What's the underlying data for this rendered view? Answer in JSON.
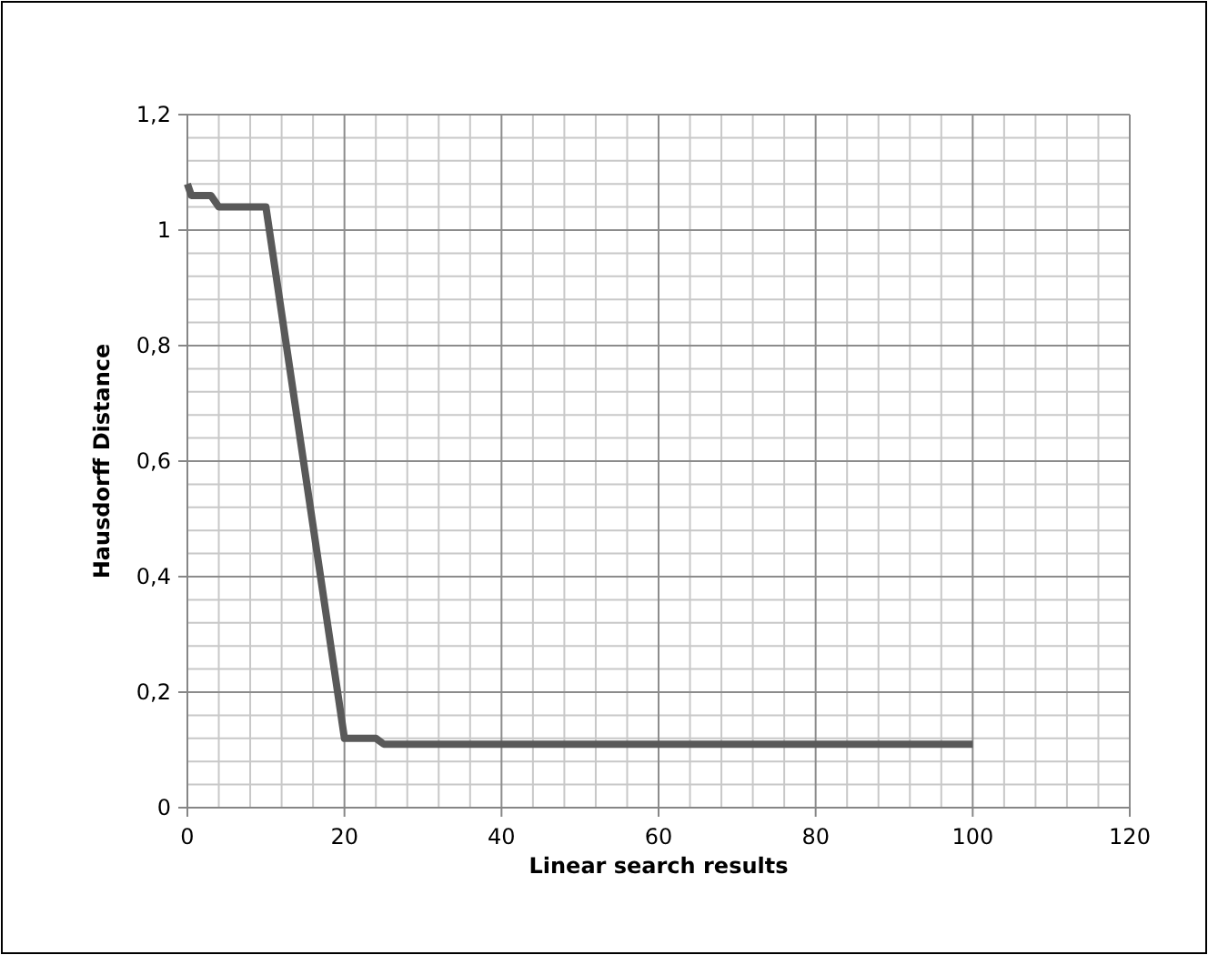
{
  "chart_data": {
    "type": "line",
    "xlabel": "Linear search results",
    "ylabel": "Hausdorff Distance",
    "series": [
      {
        "color": "#595959",
        "x": [
          0,
          0.5,
          1.3,
          3,
          4,
          10,
          20,
          24,
          25,
          100
        ],
        "values": [
          1.08,
          1.06,
          1.06,
          1.06,
          1.04,
          1.04,
          0.12,
          0.12,
          0.11,
          0.11
        ]
      }
    ],
    "xlim": [
      0,
      120
    ],
    "xticks": [
      0,
      20,
      40,
      60,
      80,
      100,
      120
    ],
    "ylim": [
      0,
      1.2
    ],
    "yticks": [
      {
        "value": 0,
        "label": "0"
      },
      {
        "value": 0.2,
        "label": "0,2"
      },
      {
        "value": 0.4,
        "label": "0,4"
      },
      {
        "value": 0.6,
        "label": "0,6"
      },
      {
        "value": 0.8,
        "label": "0,8"
      },
      {
        "value": 1,
        "label": "1"
      },
      {
        "value": 1.2,
        "label": "1,2"
      }
    ],
    "grid": true,
    "marker": "none",
    "line_style": "solid"
  }
}
